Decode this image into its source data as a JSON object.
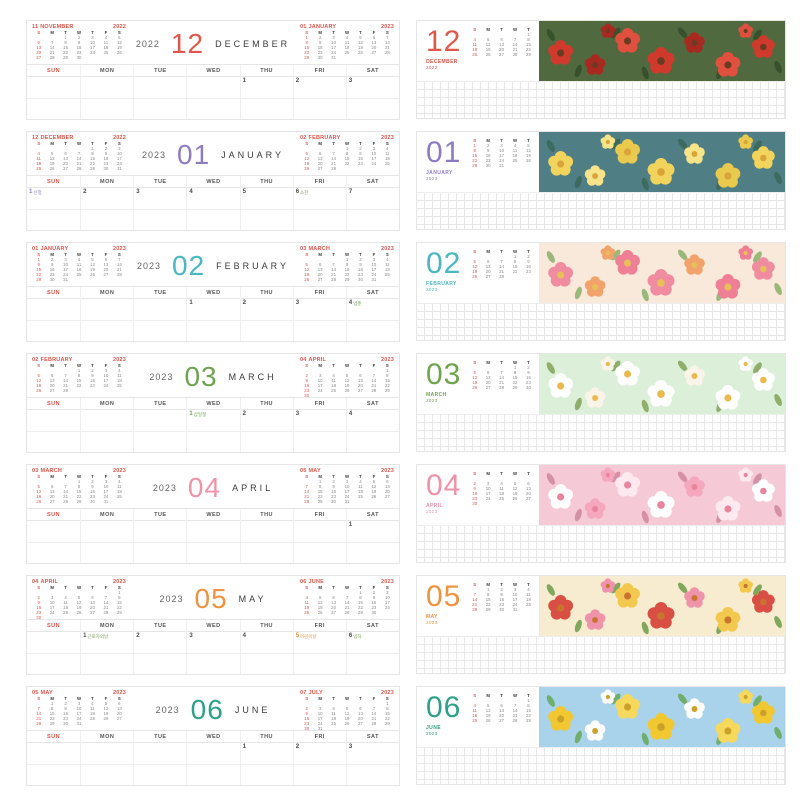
{
  "page": {
    "background": "#ffffff"
  },
  "weekdays_full": [
    "SUN",
    "MON",
    "TUE",
    "WED",
    "THU",
    "FRI",
    "SAT"
  ],
  "weekdays_min": [
    "S",
    "M",
    "T",
    "W",
    "T",
    "F",
    "S"
  ],
  "colors": {
    "sunday_red": "#e0564a",
    "weekday_text": "#555555",
    "solar_term_green": "#7a9e55",
    "grid_line": "#efefef"
  },
  "calendars": {
    "2022-11": {
      "num": "11",
      "name": "NOVEMBER",
      "year": "2022",
      "weeks": [
        [
          "",
          "",
          "1",
          "2",
          "3",
          "4",
          "5"
        ],
        [
          "6",
          "7",
          "8",
          "9",
          "10",
          "11",
          "12"
        ],
        [
          "13",
          "14",
          "15",
          "16",
          "17",
          "18",
          "19"
        ],
        [
          "20",
          "21",
          "22",
          "23",
          "24",
          "25",
          "26"
        ],
        [
          "27",
          "28",
          "29",
          "30",
          "",
          "",
          ""
        ]
      ]
    },
    "2022-12": {
      "num": "12",
      "name": "DECEMBER",
      "year": "2022",
      "weeks": [
        [
          "",
          "",
          "",
          "",
          "1",
          "2",
          "3"
        ],
        [
          "4",
          "5",
          "6",
          "7",
          "8",
          "9",
          "10"
        ],
        [
          "11",
          "12",
          "13",
          "14",
          "15",
          "16",
          "17"
        ],
        [
          "18",
          "19",
          "20",
          "21",
          "22",
          "23",
          "24"
        ],
        [
          "25",
          "26",
          "27",
          "28",
          "29",
          "30",
          "31"
        ]
      ]
    },
    "2023-01": {
      "num": "01",
      "name": "JANUARY",
      "year": "2023",
      "weeks": [
        [
          "1",
          "2",
          "3",
          "4",
          "5",
          "6",
          "7"
        ],
        [
          "8",
          "9",
          "10",
          "11",
          "12",
          "13",
          "14"
        ],
        [
          "15",
          "16",
          "17",
          "18",
          "19",
          "20",
          "21"
        ],
        [
          "22",
          "23",
          "24",
          "25",
          "26",
          "27",
          "28"
        ],
        [
          "29",
          "30",
          "31",
          "",
          "",
          "",
          ""
        ]
      ]
    },
    "2023-02": {
      "num": "02",
      "name": "FEBRUARY",
      "year": "2023",
      "weeks": [
        [
          "",
          "",
          "",
          "1",
          "2",
          "3",
          "4"
        ],
        [
          "5",
          "6",
          "7",
          "8",
          "9",
          "10",
          "11"
        ],
        [
          "12",
          "13",
          "14",
          "15",
          "16",
          "17",
          "18"
        ],
        [
          "19",
          "20",
          "21",
          "22",
          "23",
          "24",
          "25"
        ],
        [
          "26",
          "27",
          "28",
          "",
          "",
          "",
          ""
        ]
      ]
    },
    "2023-03": {
      "num": "03",
      "name": "MARCH",
      "year": "2023",
      "weeks": [
        [
          "",
          "",
          "",
          "1",
          "2",
          "3",
          "4"
        ],
        [
          "5",
          "6",
          "7",
          "8",
          "9",
          "10",
          "11"
        ],
        [
          "12",
          "13",
          "14",
          "15",
          "16",
          "17",
          "18"
        ],
        [
          "19",
          "20",
          "21",
          "22",
          "23",
          "24",
          "25"
        ],
        [
          "26",
          "27",
          "28",
          "29",
          "30",
          "31",
          ""
        ]
      ]
    },
    "2023-04": {
      "num": "04",
      "name": "APRIL",
      "year": "2023",
      "weeks": [
        [
          "",
          "",
          "",
          "",
          "",
          "",
          "1"
        ],
        [
          "2",
          "3",
          "4",
          "5",
          "6",
          "7",
          "8"
        ],
        [
          "9",
          "10",
          "11",
          "12",
          "13",
          "14",
          "15"
        ],
        [
          "16",
          "17",
          "18",
          "19",
          "20",
          "21",
          "22"
        ],
        [
          "23",
          "24",
          "25",
          "26",
          "27",
          "28",
          "29"
        ],
        [
          "30",
          "",
          "",
          "",
          "",
          "",
          ""
        ]
      ]
    },
    "2023-05": {
      "num": "05",
      "name": "MAY",
      "year": "2023",
      "weeks": [
        [
          "",
          "1",
          "2",
          "3",
          "4",
          "5",
          "6"
        ],
        [
          "7",
          "8",
          "9",
          "10",
          "11",
          "12",
          "13"
        ],
        [
          "14",
          "15",
          "16",
          "17",
          "18",
          "19",
          "20"
        ],
        [
          "21",
          "22",
          "23",
          "24",
          "25",
          "26",
          "27"
        ],
        [
          "28",
          "29",
          "30",
          "31",
          "",
          "",
          ""
        ]
      ]
    },
    "2023-06": {
      "num": "06",
      "name": "JUNE",
      "year": "2023",
      "weeks": [
        [
          "",
          "",
          "",
          "",
          "1",
          "2",
          "3"
        ],
        [
          "4",
          "5",
          "6",
          "7",
          "8",
          "9",
          "10"
        ],
        [
          "11",
          "12",
          "13",
          "14",
          "15",
          "16",
          "17"
        ],
        [
          "18",
          "19",
          "20",
          "21",
          "22",
          "23",
          "24"
        ],
        [
          "25",
          "26",
          "27",
          "28",
          "29",
          "30",
          ""
        ]
      ]
    },
    "2023-07": {
      "num": "07",
      "name": "JULY",
      "year": "2023",
      "weeks": [
        [
          "",
          "",
          "",
          "",
          "",
          "",
          "1"
        ],
        [
          "2",
          "3",
          "4",
          "5",
          "6",
          "7",
          "8"
        ],
        [
          "9",
          "10",
          "11",
          "12",
          "13",
          "14",
          "15"
        ],
        [
          "16",
          "17",
          "18",
          "19",
          "20",
          "21",
          "22"
        ],
        [
          "23",
          "24",
          "25",
          "26",
          "27",
          "28",
          "29"
        ],
        [
          "30",
          "31",
          "",
          "",
          "",
          "",
          ""
        ]
      ]
    }
  },
  "months": [
    {
      "key": "2022-12",
      "prev": "2022-11",
      "next": "2023-01",
      "year": "2022",
      "num": "12",
      "name": "DECEMBER",
      "accent": "#e2574b",
      "first_week": [
        null,
        null,
        null,
        null,
        {
          "d": "1"
        },
        {
          "d": "2"
        },
        {
          "d": "3"
        }
      ],
      "floral": {
        "flowers": "poinsettia-and-pinecones",
        "bg": "#50693f",
        "petals": [
          "#cf3a2c",
          "#a8291f",
          "#e0503f"
        ],
        "center": "#6a3b22",
        "leaf": "#36512b"
      }
    },
    {
      "key": "2023-01",
      "prev": "2022-12",
      "next": "2023-02",
      "year": "2023",
      "num": "01",
      "name": "JANUARY",
      "accent": "#8e7cc3",
      "first_week": [
        {
          "d": "1",
          "label": "신정",
          "holiday": true
        },
        {
          "d": "2"
        },
        {
          "d": "3"
        },
        {
          "d": "4"
        },
        {
          "d": "5"
        },
        {
          "d": "6",
          "label": "소한"
        },
        {
          "d": "7"
        }
      ],
      "floral": {
        "flowers": "daffodils",
        "bg": "#4f7f85",
        "petals": [
          "#f2d45c",
          "#f7e488",
          "#e9c94e"
        ],
        "center": "#d9a43a",
        "leaf": "#3d6a5f"
      }
    },
    {
      "key": "2023-02",
      "prev": "2023-01",
      "next": "2023-03",
      "year": "2023",
      "num": "02",
      "name": "FEBRUARY",
      "accent": "#49b8c0",
      "first_week": [
        null,
        null,
        null,
        {
          "d": "1"
        },
        {
          "d": "2"
        },
        {
          "d": "3"
        },
        {
          "d": "4",
          "label": "입춘"
        }
      ],
      "floral": {
        "flowers": "pink-and-orange-blossoms",
        "bg": "#f9e9da",
        "petals": [
          "#f08ca0",
          "#f2a36b",
          "#ef7f95"
        ],
        "center": "#e8c05a",
        "leaf": "#9ab87a"
      }
    },
    {
      "key": "2023-03",
      "prev": "2023-02",
      "next": "2023-04",
      "year": "2023",
      "num": "03",
      "name": "MARCH",
      "accent": "#6fa44f",
      "first_week": [
        null,
        null,
        null,
        {
          "d": "1",
          "label": "삼일절",
          "holiday": true
        },
        {
          "d": "2"
        },
        {
          "d": "3"
        },
        {
          "d": "4"
        }
      ],
      "floral": {
        "flowers": "white-magnolias",
        "bg": "#dcefd8",
        "petals": [
          "#ffffff",
          "#faf3e8",
          "#ffffff"
        ],
        "center": "#e9b94b",
        "leaf": "#8fae6c"
      }
    },
    {
      "key": "2023-04",
      "prev": "2023-03",
      "next": "2023-05",
      "year": "2023",
      "num": "04",
      "name": "APRIL",
      "accent": "#ef93ab",
      "first_week": [
        null,
        null,
        null,
        null,
        null,
        null,
        {
          "d": "1"
        }
      ],
      "floral": {
        "flowers": "cherry-blossoms",
        "bg": "#f6c9d6",
        "petals": [
          "#ffffff",
          "#f4a7bd",
          "#fde9ef"
        ],
        "center": "#e8849c",
        "leaf": "#d490a5"
      }
    },
    {
      "key": "2023-05",
      "prev": "2023-04",
      "next": "2023-06",
      "year": "2023",
      "num": "05",
      "name": "MAY",
      "accent": "#f0923f",
      "first_week": [
        null,
        {
          "d": "1",
          "label": "근로자의날"
        },
        {
          "d": "2"
        },
        {
          "d": "3"
        },
        {
          "d": "4"
        },
        {
          "d": "5",
          "label": "어린이날",
          "holiday": true
        },
        {
          "d": "6",
          "label": "입하"
        }
      ],
      "floral": {
        "flowers": "tulips",
        "bg": "#f8ecd0",
        "petals": [
          "#d94f43",
          "#ef93ab",
          "#f2c84e"
        ],
        "center": "#c8742f",
        "leaf": "#7fa85c"
      }
    },
    {
      "key": "2023-06",
      "prev": "2023-05",
      "next": "2023-07",
      "year": "2023",
      "num": "06",
      "name": "JUNE",
      "accent": "#2fa08a",
      "first_week": [
        null,
        null,
        null,
        null,
        {
          "d": "1"
        },
        {
          "d": "2"
        },
        {
          "d": "3"
        }
      ],
      "floral": {
        "flowers": "poppies",
        "bg": "#a9d3ea",
        "petals": [
          "#f2c830",
          "#ffffff",
          "#f6d95c"
        ],
        "center": "#caa22a",
        "leaf": "#6fae6c"
      }
    }
  ]
}
